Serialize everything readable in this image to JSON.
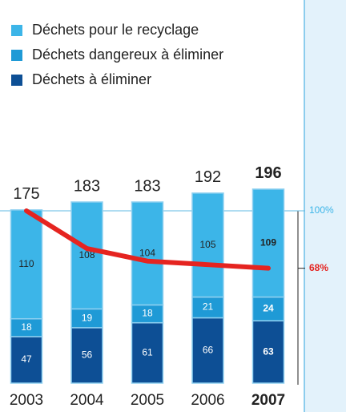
{
  "chart_data": {
    "type": "stacked_bar_line",
    "categories": [
      "2003",
      "2004",
      "2005",
      "2006",
      "2007"
    ],
    "series": [
      {
        "name": "Déchets à éliminer",
        "color": "#0d4f95",
        "values": [
          47,
          56,
          61,
          66,
          63
        ]
      },
      {
        "name": "Déchets dangereux à éliminer",
        "color": "#1f9ad6",
        "values": [
          18,
          19,
          18,
          21,
          24
        ]
      },
      {
        "name": "Déchets pour le recyclage",
        "color": "#3cb5e8",
        "values": [
          110,
          108,
          104,
          105,
          109
        ]
      },
      {
        "type": "line",
        "axis": "y2",
        "color": "#e52420",
        "values": [
          100,
          79,
          72,
          70,
          68
        ]
      }
    ],
    "totals": [
      175,
      183,
      183,
      192,
      196
    ],
    "highlight_index": 4,
    "ylim": [
      0,
      200
    ],
    "y2lim": [
      4,
      100
    ],
    "y2ticks": [
      {
        "value": 100,
        "label": "100%"
      },
      {
        "value": 68,
        "label": "68%"
      }
    ]
  }
}
